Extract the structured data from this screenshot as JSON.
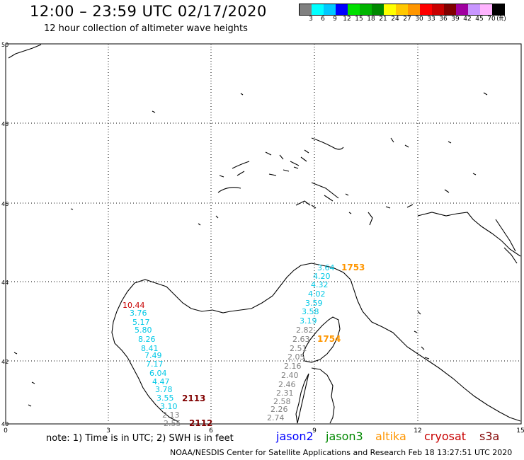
{
  "header": {
    "title": "12:00 – 23:59 UTC 02/17/2020",
    "subtitle": "12 hour collection of altimeter wave heights"
  },
  "scale": {
    "unit": "(ft)",
    "labels": [
      "3",
      "6",
      "9",
      "12",
      "15",
      "18",
      "21",
      "24",
      "27",
      "30",
      "33",
      "36",
      "39",
      "42",
      "45",
      "70"
    ],
    "colors": [
      "#808080",
      "#00ffff",
      "#00c8ff",
      "#0000ff",
      "#00e000",
      "#00b400",
      "#008800",
      "#ffff00",
      "#ffc800",
      "#ff9600",
      "#ff0000",
      "#c80000",
      "#800000",
      "#a000a0",
      "#c896ff",
      "#ffb4ff",
      "#000000"
    ]
  },
  "axes": {
    "x_labels": [
      "0",
      "3",
      "6",
      "9",
      "12",
      "15"
    ],
    "y_labels": [
      "50",
      "48",
      "46",
      "44",
      "42",
      "40"
    ]
  },
  "colors": {
    "jason2": "#0000ff",
    "jason3": "#008800",
    "altika": "#ff9600",
    "cryosat": "#c80000",
    "s3a": "#800000",
    "gray_track": "#808080",
    "cyan_track": "#00c8e6"
  },
  "tracks": {
    "west": {
      "time": "2113",
      "time_b": "2112",
      "values": [
        "10.44",
        "3.76",
        "5.17",
        "5.80",
        "8.26",
        "8.41",
        "7.49",
        "7.17",
        "6.04",
        "4.47",
        "3.78",
        "3.55",
        "3.10",
        "2.13",
        "2.55"
      ]
    },
    "east": {
      "time_a": "1753",
      "time_b": "1754",
      "values": [
        "3.64",
        "4.20",
        "4.32",
        "4.02",
        "3.59",
        "3.58",
        "3.19",
        "2.82",
        "2.63",
        "2.51",
        "2.05",
        "2.16",
        "2.40",
        "2.46",
        "2.31",
        "2.58",
        "2.26",
        "2.74"
      ]
    }
  },
  "footer": {
    "note": "note: 1) Time is in UTC; 2) SWH is in feet",
    "legend": {
      "jason2": "jason2",
      "jason3": "jason3",
      "altika": "altika",
      "cryosat": "cryosat",
      "s3a": "s3a"
    },
    "credit": "NOAA/NESDIS Center for Satellite Applications and Research     Feb 18 13:27:51 UTC 2020"
  }
}
